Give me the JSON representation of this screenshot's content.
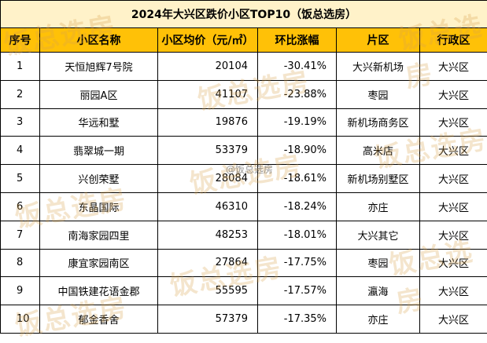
{
  "title": "2024年大兴区跌价小区TOP10（饭总选房）",
  "columns": [
    "序号",
    "小区名称",
    "小区均价（元/㎡）",
    "环比涨幅",
    "片区",
    "行政区"
  ],
  "rows": [
    {
      "rank": "1",
      "name": "天恒旭辉7号院",
      "price": "20104",
      "change": "-30.41%",
      "area": "大兴新机场",
      "district": "大兴区"
    },
    {
      "rank": "2",
      "name": "丽园A区",
      "price": "41107",
      "change": "-23.88%",
      "area": "枣园",
      "district": "大兴区"
    },
    {
      "rank": "3",
      "name": "华远和墅",
      "price": "19876",
      "change": "-19.19%",
      "area": "新机场商务区",
      "district": "大兴区"
    },
    {
      "rank": "4",
      "name": "翡翠城一期",
      "price": "53379",
      "change": "-18.90%",
      "area": "高米店",
      "district": "大兴区"
    },
    {
      "rank": "5",
      "name": "兴创荣墅",
      "price": "28084",
      "change": "-18.61%",
      "area": "新机场别墅区",
      "district": "大兴区"
    },
    {
      "rank": "6",
      "name": "东晶国际",
      "price": "46310",
      "change": "-18.24%",
      "area": "亦庄",
      "district": "大兴区"
    },
    {
      "rank": "7",
      "name": "南海家园四里",
      "price": "48253",
      "change": "-18.01%",
      "area": "大兴其它",
      "district": "大兴区"
    },
    {
      "rank": "8",
      "name": "康宜家园南区",
      "price": "27864",
      "change": "-17.75%",
      "area": "枣园",
      "district": "大兴区"
    },
    {
      "rank": "9",
      "name": "中国铁建花语金郡",
      "price": "55595",
      "change": "-17.57%",
      "area": "瀛海",
      "district": "大兴区"
    },
    {
      "rank": "10",
      "name": "郁金香舍",
      "price": "57379",
      "change": "-17.35%",
      "area": "亦庄",
      "district": "大兴区"
    }
  ],
  "watermark": "饭总选房",
  "social_watermark": "@饭总选房",
  "colors": {
    "title_bg": "#fff2c9",
    "header_bg": "#ffc107",
    "watermark": "#d6a04c"
  }
}
